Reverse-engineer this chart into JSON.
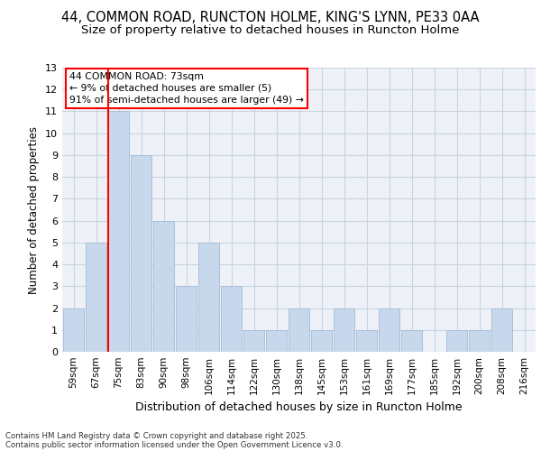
{
  "title1": "44, COMMON ROAD, RUNCTON HOLME, KING'S LYNN, PE33 0AA",
  "title2": "Size of property relative to detached houses in Runcton Holme",
  "xlabel": "Distribution of detached houses by size in Runcton Holme",
  "ylabel": "Number of detached properties",
  "categories": [
    "59sqm",
    "67sqm",
    "75sqm",
    "83sqm",
    "90sqm",
    "98sqm",
    "106sqm",
    "114sqm",
    "122sqm",
    "130sqm",
    "138sqm",
    "145sqm",
    "153sqm",
    "161sqm",
    "169sqm",
    "177sqm",
    "185sqm",
    "192sqm",
    "200sqm",
    "208sqm",
    "216sqm"
  ],
  "values": [
    2,
    5,
    11,
    9,
    6,
    3,
    5,
    3,
    1,
    1,
    2,
    1,
    2,
    1,
    2,
    1,
    0,
    1,
    1,
    2,
    0
  ],
  "bar_color": "#c8d8ec",
  "bar_edge_color": "#a8c0d8",
  "red_line_index": 2,
  "annotation_title": "44 COMMON ROAD: 73sqm",
  "annotation_line1": "← 9% of detached houses are smaller (5)",
  "annotation_line2": "91% of semi-detached houses are larger (49) →",
  "footer1": "Contains HM Land Registry data © Crown copyright and database right 2025.",
  "footer2": "Contains public sector information licensed under the Open Government Licence v3.0.",
  "ylim": [
    0,
    13
  ],
  "yticks": [
    0,
    1,
    2,
    3,
    4,
    5,
    6,
    7,
    8,
    9,
    10,
    11,
    12,
    13
  ],
  "bg_color": "#eef2f8",
  "grid_color": "#c8d4e0",
  "title_fontsize": 10.5,
  "subtitle_fontsize": 9.5
}
